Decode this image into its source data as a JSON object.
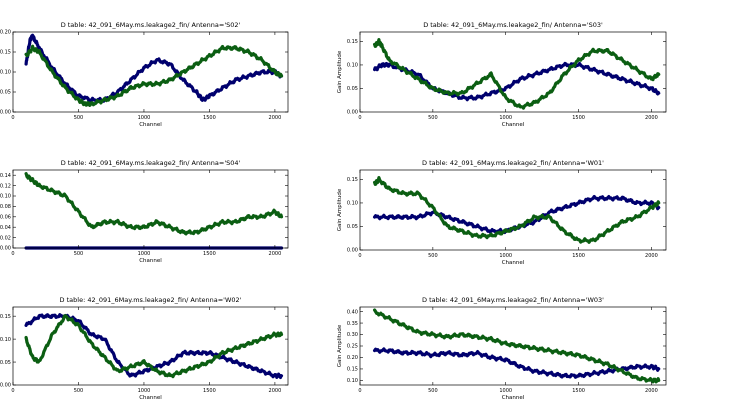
{
  "colors": {
    "blue": "#00006e",
    "green": "#0b5e12",
    "outline": "#000000",
    "background": "#ffffff"
  },
  "chart_data": [
    {
      "type": "line",
      "title": "D table: 42_091_6May.ms.leakage2_fin/      Antenna='S02'",
      "xlabel": "Channel",
      "ylabel": "",
      "xlim": [
        0,
        2100
      ],
      "ylim": [
        0.0,
        0.2
      ],
      "xticks": [
        0,
        500,
        1000,
        1500,
        2000
      ],
      "yticks": [
        0.0,
        0.05,
        0.1,
        0.15,
        0.2
      ],
      "ytick_labels": [
        "0.00",
        "0.05",
        "0.10",
        "0.15",
        "0.20"
      ],
      "grid": false,
      "series": [
        {
          "color": "blue",
          "x": [
            100,
            130,
            150,
            200,
            300,
            400,
            500,
            600,
            700,
            800,
            900,
            1000,
            1100,
            1200,
            1300,
            1400,
            1450,
            1500,
            1600,
            1700,
            1800,
            1900,
            2000,
            2050
          ],
          "values": [
            0.12,
            0.18,
            0.19,
            0.16,
            0.11,
            0.07,
            0.04,
            0.03,
            0.03,
            0.05,
            0.08,
            0.11,
            0.13,
            0.12,
            0.08,
            0.05,
            0.03,
            0.04,
            0.06,
            0.08,
            0.09,
            0.1,
            0.1,
            0.09
          ]
        },
        {
          "color": "green",
          "x": [
            100,
            150,
            200,
            300,
            400,
            500,
            550,
            600,
            700,
            800,
            900,
            1000,
            1100,
            1200,
            1300,
            1400,
            1500,
            1600,
            1700,
            1800,
            1900,
            2000,
            2050
          ],
          "values": [
            0.14,
            0.16,
            0.15,
            0.1,
            0.06,
            0.03,
            0.02,
            0.02,
            0.03,
            0.04,
            0.06,
            0.07,
            0.07,
            0.08,
            0.1,
            0.12,
            0.14,
            0.16,
            0.16,
            0.15,
            0.13,
            0.1,
            0.09
          ]
        }
      ]
    },
    {
      "type": "line",
      "title": "D table: 42_091_6May.ms.leakage2_fin/      Antenna='S03'",
      "xlabel": "Channel",
      "ylabel": "Gain Amplitude",
      "xlim": [
        0,
        2100
      ],
      "ylim": [
        0.0,
        0.17
      ],
      "xticks": [
        0,
        500,
        1000,
        1500,
        2000
      ],
      "yticks": [
        0.0,
        0.05,
        0.1,
        0.15
      ],
      "ytick_labels": [
        "0.00",
        "0.05",
        "0.10",
        "0.15"
      ],
      "grid": false,
      "series": [
        {
          "color": "blue",
          "x": [
            100,
            150,
            200,
            300,
            400,
            500,
            600,
            700,
            800,
            900,
            1000,
            1100,
            1200,
            1300,
            1400,
            1500,
            1600,
            1700,
            1800,
            1900,
            2000,
            2050
          ],
          "values": [
            0.09,
            0.1,
            0.1,
            0.09,
            0.08,
            0.05,
            0.04,
            0.03,
            0.03,
            0.04,
            0.05,
            0.07,
            0.08,
            0.09,
            0.1,
            0.1,
            0.09,
            0.08,
            0.07,
            0.06,
            0.05,
            0.04
          ]
        },
        {
          "color": "green",
          "x": [
            100,
            130,
            150,
            200,
            300,
            400,
            500,
            600,
            700,
            800,
            900,
            1000,
            1100,
            1200,
            1300,
            1400,
            1500,
            1600,
            1700,
            1800,
            1900,
            2000,
            2050
          ],
          "values": [
            0.14,
            0.15,
            0.14,
            0.11,
            0.09,
            0.07,
            0.05,
            0.04,
            0.04,
            0.06,
            0.08,
            0.03,
            0.01,
            0.02,
            0.04,
            0.08,
            0.11,
            0.13,
            0.13,
            0.11,
            0.09,
            0.07,
            0.08
          ]
        }
      ]
    },
    {
      "type": "line",
      "title": "D table: 42_091_6May.ms.leakage2_fin/      Antenna='S04'",
      "xlabel": "Channel",
      "ylabel": "",
      "xlim": [
        0,
        2100
      ],
      "ylim": [
        0.0,
        0.15
      ],
      "xticks": [
        0,
        500,
        1000,
        1500,
        2000
      ],
      "yticks": [
        0.0,
        0.02,
        0.04,
        0.06,
        0.08,
        0.1,
        0.12,
        0.14
      ],
      "ytick_labels": [
        "0.00",
        "0.02",
        "0.04",
        "0.06",
        "0.08",
        "0.10",
        "0.12",
        "0.14"
      ],
      "grid": false,
      "series": [
        {
          "color": "blue",
          "x": [
            100,
            2050
          ],
          "values": [
            0.0,
            0.0
          ]
        },
        {
          "color": "green",
          "x": [
            100,
            150,
            200,
            300,
            400,
            500,
            600,
            700,
            800,
            900,
            1000,
            1100,
            1200,
            1300,
            1400,
            1500,
            1600,
            1700,
            1800,
            1900,
            2000,
            2050
          ],
          "values": [
            0.14,
            0.13,
            0.12,
            0.11,
            0.1,
            0.07,
            0.04,
            0.05,
            0.05,
            0.04,
            0.04,
            0.05,
            0.04,
            0.03,
            0.03,
            0.04,
            0.05,
            0.05,
            0.06,
            0.06,
            0.07,
            0.06
          ]
        }
      ]
    },
    {
      "type": "line",
      "title": "D table: 42_091_6May.ms.leakage2_fin/      Antenna='W01'",
      "xlabel": "Channel",
      "ylabel": "Gain Amplitude",
      "xlim": [
        0,
        2100
      ],
      "ylim": [
        0.0,
        0.17
      ],
      "xticks": [
        0,
        500,
        1000,
        1500,
        2000
      ],
      "yticks": [
        0.0,
        0.05,
        0.1,
        0.15
      ],
      "ytick_labels": [
        "0.00",
        "0.05",
        "0.10",
        "0.15"
      ],
      "grid": false,
      "series": [
        {
          "color": "blue",
          "x": [
            100,
            200,
            300,
            400,
            500,
            600,
            700,
            800,
            900,
            1000,
            1100,
            1200,
            1300,
            1400,
            1500,
            1600,
            1700,
            1800,
            1900,
            2000,
            2050
          ],
          "values": [
            0.07,
            0.07,
            0.07,
            0.07,
            0.08,
            0.07,
            0.06,
            0.05,
            0.04,
            0.04,
            0.05,
            0.06,
            0.08,
            0.09,
            0.1,
            0.11,
            0.11,
            0.11,
            0.1,
            0.1,
            0.09
          ]
        },
        {
          "color": "green",
          "x": [
            100,
            130,
            200,
            300,
            400,
            500,
            600,
            700,
            800,
            900,
            1000,
            1100,
            1200,
            1300,
            1400,
            1500,
            1600,
            1700,
            1800,
            1900,
            2000,
            2050
          ],
          "values": [
            0.14,
            0.15,
            0.13,
            0.12,
            0.12,
            0.09,
            0.05,
            0.04,
            0.03,
            0.03,
            0.04,
            0.05,
            0.07,
            0.07,
            0.04,
            0.02,
            0.02,
            0.04,
            0.06,
            0.07,
            0.09,
            0.1
          ]
        }
      ]
    },
    {
      "type": "line",
      "title": "D table: 42_091_6May.ms.leakage2_fin/      Antenna='W02'",
      "xlabel": "Channel",
      "ylabel": "",
      "xlim": [
        0,
        2100
      ],
      "ylim": [
        0.0,
        0.17
      ],
      "xticks": [
        0,
        500,
        1000,
        1500,
        2000
      ],
      "yticks": [
        0.0,
        0.05,
        0.1,
        0.15
      ],
      "ytick_labels": [
        "0.00",
        "0.05",
        "0.10",
        "0.15"
      ],
      "grid": false,
      "series": [
        {
          "color": "blue",
          "x": [
            100,
            200,
            300,
            400,
            500,
            600,
            700,
            800,
            900,
            1000,
            1100,
            1200,
            1300,
            1400,
            1500,
            1600,
            1700,
            1800,
            1900,
            2000,
            2050
          ],
          "values": [
            0.13,
            0.15,
            0.15,
            0.15,
            0.14,
            0.11,
            0.1,
            0.05,
            0.02,
            0.03,
            0.04,
            0.05,
            0.07,
            0.07,
            0.07,
            0.06,
            0.05,
            0.04,
            0.03,
            0.02,
            0.02
          ]
        },
        {
          "color": "green",
          "x": [
            100,
            150,
            200,
            300,
            400,
            500,
            600,
            700,
            800,
            900,
            1000,
            1100,
            1200,
            1300,
            1400,
            1500,
            1600,
            1700,
            1800,
            1900,
            2000,
            2050
          ],
          "values": [
            0.1,
            0.06,
            0.05,
            0.11,
            0.15,
            0.13,
            0.09,
            0.06,
            0.03,
            0.04,
            0.05,
            0.03,
            0.02,
            0.03,
            0.04,
            0.05,
            0.07,
            0.08,
            0.09,
            0.1,
            0.11,
            0.11
          ]
        }
      ]
    },
    {
      "type": "line",
      "title": "D table: 42_091_6May.ms.leakage2_fin/      Antenna='W03'",
      "xlabel": "Channel",
      "ylabel": "Gain Amplitude",
      "xlim": [
        0,
        2100
      ],
      "ylim": [
        0.08,
        0.42
      ],
      "xticks": [
        0,
        500,
        1000,
        1500,
        2000
      ],
      "yticks": [
        0.1,
        0.15,
        0.2,
        0.25,
        0.3,
        0.35,
        0.4
      ],
      "ytick_labels": [
        "0.10",
        "0.15",
        "0.20",
        "0.25",
        "0.30",
        "0.35",
        "0.40"
      ],
      "grid": false,
      "series": [
        {
          "color": "blue",
          "x": [
            100,
            200,
            300,
            400,
            500,
            600,
            700,
            800,
            900,
            1000,
            1100,
            1200,
            1300,
            1400,
            1500,
            1600,
            1700,
            1800,
            1900,
            2000,
            2050
          ],
          "values": [
            0.23,
            0.23,
            0.22,
            0.22,
            0.21,
            0.22,
            0.21,
            0.22,
            0.2,
            0.19,
            0.16,
            0.14,
            0.13,
            0.12,
            0.12,
            0.13,
            0.14,
            0.15,
            0.16,
            0.16,
            0.15
          ]
        },
        {
          "color": "green",
          "x": [
            100,
            200,
            300,
            400,
            500,
            600,
            700,
            800,
            900,
            1000,
            1100,
            1200,
            1300,
            1400,
            1500,
            1600,
            1700,
            1800,
            1900,
            2000,
            2050
          ],
          "values": [
            0.4,
            0.37,
            0.34,
            0.31,
            0.3,
            0.29,
            0.3,
            0.29,
            0.28,
            0.26,
            0.25,
            0.24,
            0.23,
            0.22,
            0.21,
            0.19,
            0.17,
            0.14,
            0.11,
            0.1,
            0.1
          ]
        }
      ]
    }
  ]
}
